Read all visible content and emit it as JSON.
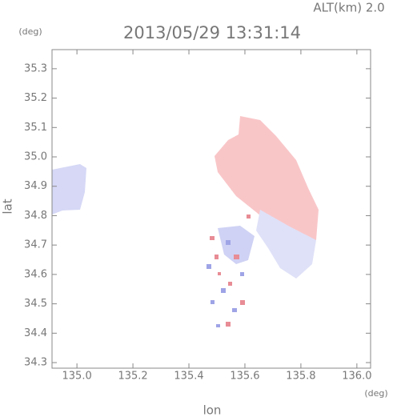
{
  "chart_data": {
    "type": "map",
    "title": "2013/05/29 13:31:14",
    "subtitle": "ALT(km) 2.0",
    "x_label": "lon",
    "y_label": "lat",
    "x_unit": "(deg)",
    "y_unit": "(deg)",
    "xlim": [
      134.911,
      136.049
    ],
    "ylim": [
      34.281,
      35.365
    ],
    "xticks": [
      {
        "value": 135,
        "label": "135.0"
      },
      135.2,
      135.4,
      135.6,
      135.8,
      {
        "value": 136,
        "label": "136.0"
      }
    ],
    "yticks": [
      34.3,
      34.4,
      34.5,
      34.6,
      34.7,
      34.8,
      34.9,
      {
        "value": 35,
        "label": "35.0"
      },
      35.1,
      35.2,
      35.3
    ]
  }
}
